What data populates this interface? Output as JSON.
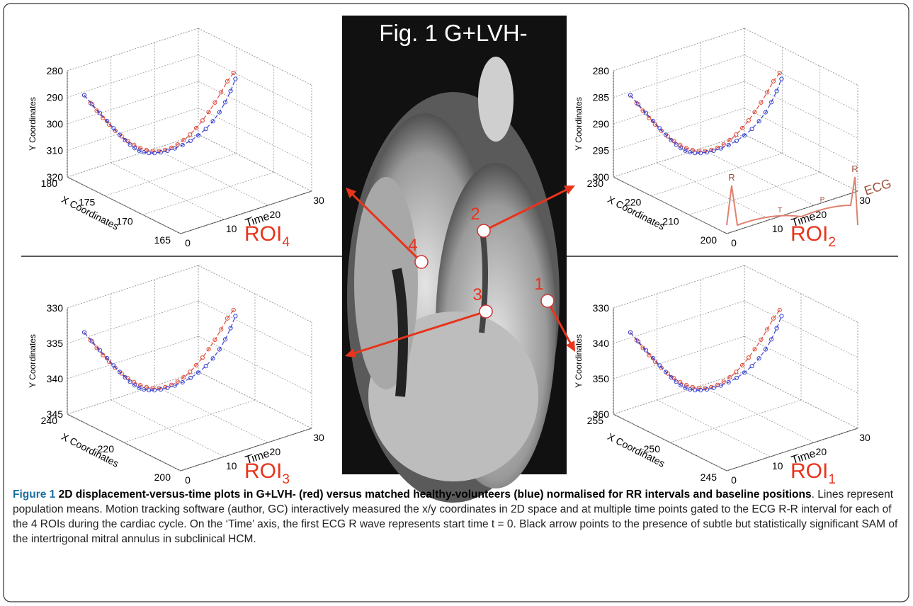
{
  "figure": {
    "title": "Fig. 1 G+LVH-",
    "markers": [
      "4",
      "2",
      "3",
      "1"
    ],
    "panels": [
      {
        "roi": "ROI",
        "sub": "4",
        "y_label": "Y Coordinates",
        "x_label": "X Coordinates",
        "t_label": "Time",
        "y_ticks": [
          280,
          290,
          300,
          310,
          320
        ],
        "x_ticks": [
          180,
          175,
          170,
          165
        ],
        "t_ticks": [
          0,
          10,
          20,
          30
        ]
      },
      {
        "roi": "ROI",
        "sub": "2",
        "y_label": "Y Coordinates",
        "x_label": "X Coordinates",
        "t_label": "Time",
        "y_ticks": [
          280,
          285,
          290,
          295,
          300
        ],
        "x_ticks": [
          230,
          220,
          210,
          200
        ],
        "t_ticks": [
          0,
          10,
          20,
          30
        ],
        "ecg": [
          "R",
          "T",
          "P",
          "R",
          "ECG"
        ]
      },
      {
        "roi": "ROI",
        "sub": "3",
        "y_label": "Y Coordinates",
        "x_label": "X Coordinates",
        "t_label": "Time",
        "y_ticks": [
          330,
          335,
          340,
          345
        ],
        "x_ticks": [
          240,
          220,
          200
        ],
        "t_ticks": [
          0,
          10,
          20,
          30
        ]
      },
      {
        "roi": "ROI",
        "sub": "1",
        "y_label": "Y Coordinates",
        "x_label": "X Coordinates",
        "t_label": "Time",
        "y_ticks": [
          330,
          340,
          350,
          360
        ],
        "x_ticks": [
          255,
          250,
          245
        ],
        "t_ticks": [
          0,
          10,
          20,
          30
        ]
      }
    ]
  },
  "caption": {
    "label": "Figure 1",
    "title": "2D displacement-versus-time plots in G+LVH- (red) versus matched healthy-volunteers (blue) normalised for RR intervals and baseline positions",
    "text": ". Lines represent population means. Motion tracking software (author, GC) interactively measured the x/y coordinates in 2D space and at multiple time points gated to the ECG R-R interval for each of the 4 ROIs during the cardiac cycle. On the ‘Time’ axis, the first ECG R wave represents start time t = 0. Black arrow points to the presence of subtle but statistically significant SAM of the intertrigonal mitral annulus in subclinical HCM."
  }
}
